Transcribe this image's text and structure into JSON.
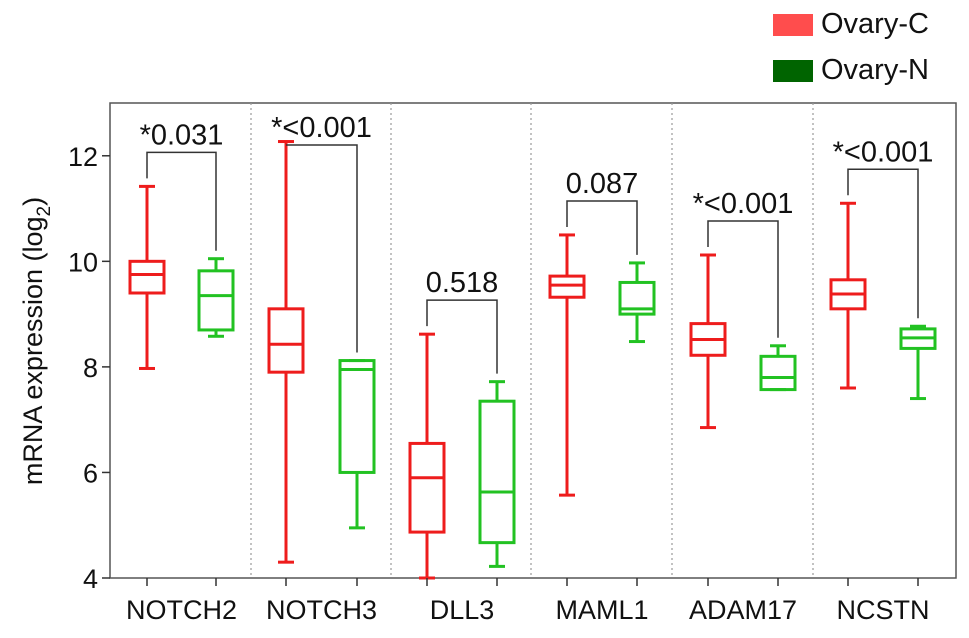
{
  "chart_data": {
    "type": "boxplot",
    "ylabel": "mRNA expression (log",
    "ylabel_sub": "2",
    "ylabel_close": ")",
    "ylim": [
      4,
      13
    ],
    "yticks": [
      4,
      6,
      8,
      10,
      12
    ],
    "categories": [
      "NOTCH2",
      "NOTCH3",
      "DLL3",
      "MAML1",
      "ADAM17",
      "NCSTN"
    ],
    "legend_position": "top-right",
    "legend": [
      {
        "name": "Ovary-C",
        "color": "#ff4d4d"
      },
      {
        "name": "Ovary-N",
        "color": "#006400"
      }
    ],
    "series": [
      {
        "name": "Ovary-C",
        "color": "#ee1c1c",
        "boxes": [
          {
            "min": 7.97,
            "q1": 9.4,
            "median": 9.75,
            "q3": 10.0,
            "max": 11.42
          },
          {
            "min": 4.3,
            "q1": 7.9,
            "median": 8.43,
            "q3": 9.1,
            "max": 12.27
          },
          {
            "min": 4.0,
            "q1": 4.87,
            "median": 5.9,
            "q3": 6.55,
            "max": 8.62
          },
          {
            "min": 5.57,
            "q1": 9.32,
            "median": 9.55,
            "q3": 9.72,
            "max": 10.5
          },
          {
            "min": 6.85,
            "q1": 8.22,
            "median": 8.52,
            "q3": 8.82,
            "max": 10.12
          },
          {
            "min": 7.6,
            "q1": 9.1,
            "median": 9.38,
            "q3": 9.65,
            "max": 11.1
          }
        ]
      },
      {
        "name": "Ovary-N",
        "color": "#22c222",
        "boxes": [
          {
            "min": 8.58,
            "q1": 8.7,
            "median": 9.35,
            "q3": 9.82,
            "max": 10.05
          },
          {
            "min": 4.95,
            "q1": 6.0,
            "median": 7.95,
            "q3": 8.12,
            "max": 8.12
          },
          {
            "min": 4.22,
            "q1": 4.67,
            "median": 5.63,
            "q3": 7.35,
            "max": 7.72
          },
          {
            "min": 8.48,
            "q1": 9.0,
            "median": 9.1,
            "q3": 9.6,
            "max": 9.97
          },
          {
            "min": 7.57,
            "q1": 7.57,
            "median": 7.8,
            "q3": 8.2,
            "max": 8.4
          },
          {
            "min": 7.4,
            "q1": 8.35,
            "median": 8.55,
            "q3": 8.72,
            "max": 8.77
          }
        ]
      }
    ],
    "annotations": [
      "*0.031",
      "*<0.001",
      "0.518",
      "0.087",
      "*<0.001",
      "*<0.001"
    ]
  }
}
